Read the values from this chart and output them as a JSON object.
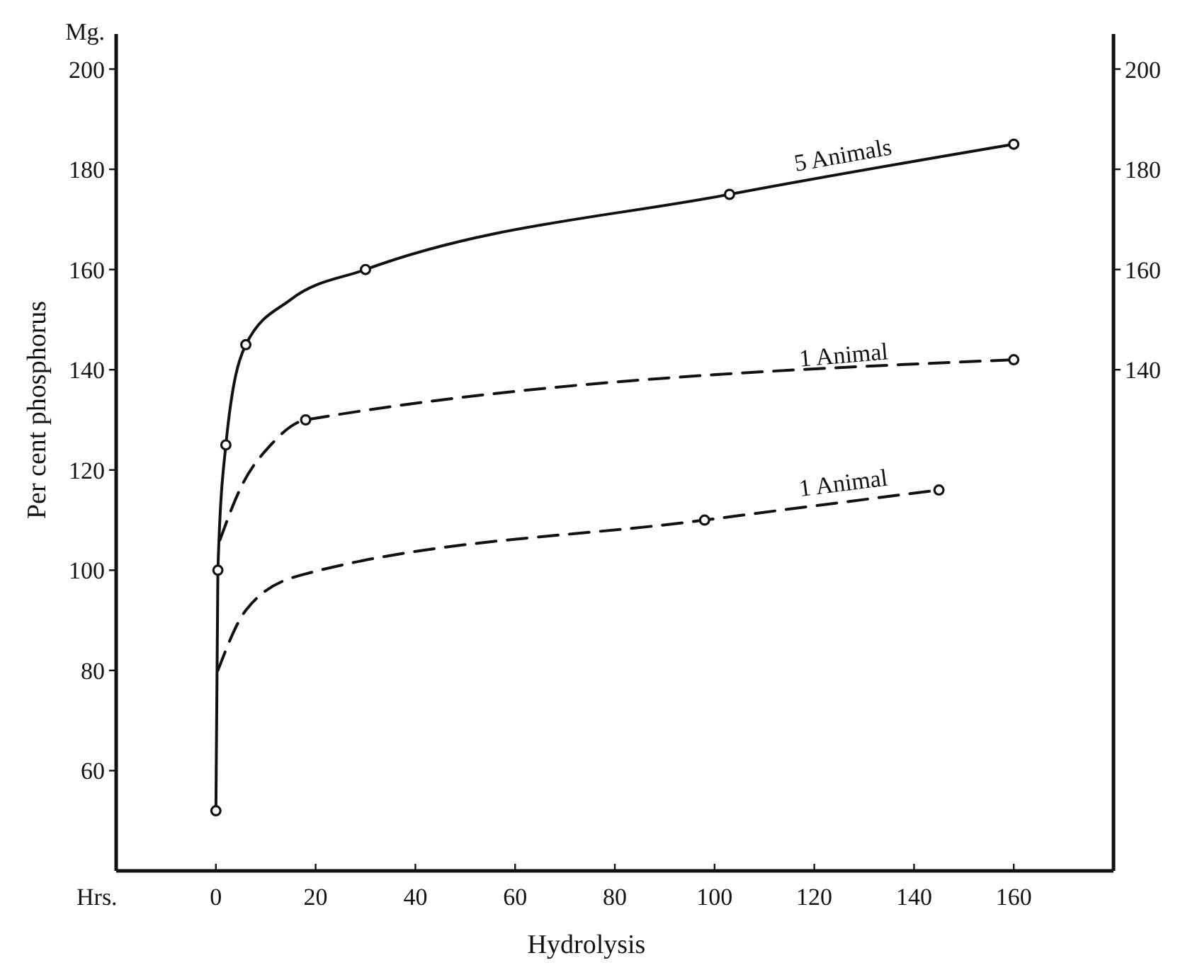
{
  "chart_data": {
    "type": "line",
    "xlabel": "Hydrolysis",
    "ylabel": "Per cent phosphorus",
    "annotations": [
      "Mg.",
      "Hrs."
    ],
    "xlim": [
      -20,
      180
    ],
    "xticks": [
      0,
      20,
      40,
      60,
      80,
      100,
      120,
      140,
      160
    ],
    "ylim": [
      40,
      207
    ],
    "yticks": [
      60,
      80,
      100,
      120,
      140,
      160,
      180,
      200
    ],
    "y2lim": [
      40,
      207
    ],
    "y2ticks": [
      140,
      160,
      180,
      200
    ],
    "grid": false,
    "series": [
      {
        "name": "5 Animals",
        "marker": "none",
        "line_style": "solid",
        "color": "#111111",
        "x": [
          0,
          0.4,
          2,
          6,
          15,
          30,
          103,
          160
        ],
        "values": [
          52,
          100,
          125,
          145,
          154,
          160,
          175,
          185
        ]
      },
      {
        "type": "scatter",
        "marker": "circle",
        "color": "#111111",
        "x": [
          0,
          0.4,
          2,
          6,
          30,
          103,
          160
        ],
        "values": [
          52,
          100,
          125,
          145,
          160,
          175,
          185
        ]
      },
      {
        "name": "1 Animal",
        "marker": "none",
        "line_style": "dashed",
        "color": "#111111",
        "x": [
          0.8,
          5,
          11,
          18,
          160
        ],
        "values": [
          106,
          116.5,
          125,
          130,
          142
        ]
      },
      {
        "type": "scatter",
        "marker": "circle",
        "color": "#111111",
        "x": [
          18,
          160
        ],
        "values": [
          130,
          142
        ]
      },
      {
        "name": "1 Animal",
        "marker": "none",
        "line_style": "dashed",
        "color": "#111111",
        "x": [
          0.4,
          6,
          17,
          98,
          145
        ],
        "values": [
          80,
          92,
          99,
          110,
          116
        ]
      },
      {
        "type": "scatter",
        "marker": "circle",
        "color": "#111111",
        "x": [
          98,
          145
        ],
        "values": [
          110,
          116
        ]
      }
    ]
  }
}
